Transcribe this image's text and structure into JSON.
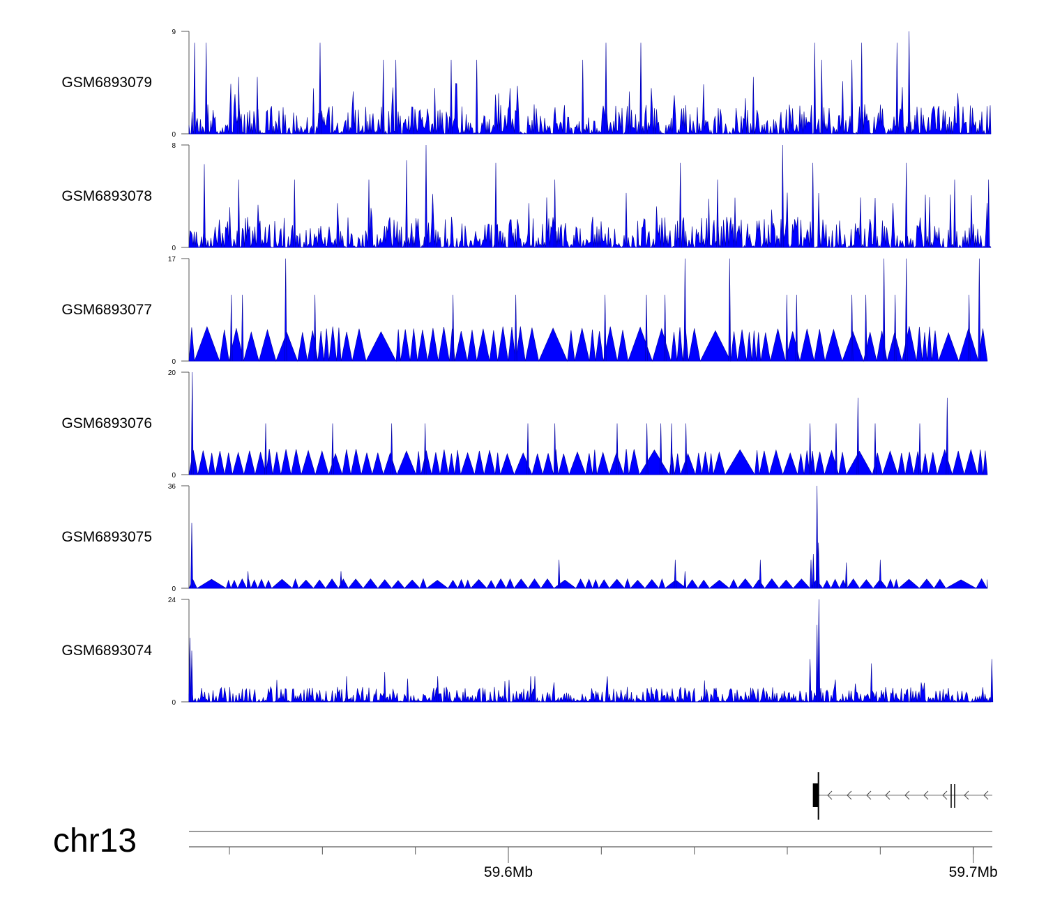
{
  "chart_data": {
    "type": "area",
    "title": "",
    "chromosome": "chr13",
    "xlim_mb": [
      59.5313,
      59.7041
    ],
    "axis": {
      "tick_positions_mb": [
        59.54,
        59.56,
        59.58,
        59.6,
        59.62,
        59.64,
        59.66,
        59.68,
        59.7
      ],
      "labels": [
        {
          "pos_mb": 59.6,
          "text": "59.6Mb"
        },
        {
          "pos_mb": 59.7,
          "text": "59.7Mb"
        }
      ]
    },
    "tracks": [
      {
        "name": "GSM6893079",
        "ylim": [
          0,
          9
        ],
        "ymin_label": "0",
        "ymax_label": "9",
        "style": "dense",
        "noise": 2.6,
        "peaks": [
          [
            59.5325,
            8
          ],
          [
            59.535,
            8
          ],
          [
            59.5595,
            8
          ],
          [
            59.621,
            8
          ],
          [
            59.6285,
            8
          ],
          [
            59.6862,
            9
          ],
          [
            59.6659,
            8
          ],
          [
            59.676,
            8
          ],
          [
            59.6836,
            8
          ],
          [
            59.616,
            6.5
          ],
          [
            59.5877,
            6.5
          ],
          [
            59.5731,
            6.5
          ],
          [
            59.5758,
            6.5
          ],
          [
            59.5932,
            6.5
          ],
          [
            59.6527,
            5
          ],
          [
            59.6674,
            6.5
          ],
          [
            59.6739,
            6.5
          ],
          [
            59.546,
            5
          ],
          [
            59.542,
            5
          ]
        ]
      },
      {
        "name": "GSM6893078",
        "ylim": [
          0,
          8
        ],
        "ymin_label": "0",
        "ymax_label": "8",
        "style": "dense",
        "noise": 2.4,
        "peaks": [
          [
            59.5823,
            8
          ],
          [
            59.659,
            8
          ],
          [
            59.5346,
            6.5
          ],
          [
            59.5781,
            6.8
          ],
          [
            59.5973,
            6.6
          ],
          [
            59.637,
            6.6
          ],
          [
            59.6655,
            6.6
          ],
          [
            59.6856,
            6.6
          ],
          [
            59.7033,
            5.3
          ],
          [
            59.542,
            5.3
          ],
          [
            59.554,
            5.3
          ],
          [
            59.57,
            5.3
          ],
          [
            59.61,
            5.3
          ],
          [
            59.645,
            5.3
          ],
          [
            59.696,
            5.3
          ]
        ]
      },
      {
        "name": "GSM6893077",
        "ylim": [
          0,
          17
        ],
        "ymin_label": "0",
        "ymax_label": "17",
        "style": "sparse",
        "base": 5.5,
        "peaks": [
          [
            59.5521,
            17
          ],
          [
            59.638,
            17
          ],
          [
            59.6476,
            17
          ],
          [
            59.6808,
            17
          ],
          [
            59.6856,
            17
          ],
          [
            59.7013,
            17
          ],
          [
            59.5404,
            11
          ],
          [
            59.5428,
            11
          ],
          [
            59.5584,
            11
          ],
          [
            59.5881,
            11
          ],
          [
            59.6016,
            11
          ],
          [
            59.6208,
            11
          ],
          [
            59.6297,
            11
          ],
          [
            59.6337,
            11
          ],
          [
            59.6599,
            11
          ],
          [
            59.662,
            11
          ],
          [
            59.6739,
            11
          ],
          [
            59.6769,
            11
          ],
          [
            59.6832,
            11
          ],
          [
            59.6991,
            11
          ]
        ]
      },
      {
        "name": "GSM6893076",
        "ylim": [
          0,
          20
        ],
        "ymin_label": "0",
        "ymax_label": "20",
        "style": "sparse",
        "base": 4.8,
        "peaks": [
          [
            59.532,
            20
          ],
          [
            59.6752,
            15
          ],
          [
            59.6944,
            15
          ],
          [
            59.5478,
            10
          ],
          [
            59.5622,
            10
          ],
          [
            59.5749,
            10
          ],
          [
            59.5821,
            10
          ],
          [
            59.61,
            10
          ],
          [
            59.6234,
            10
          ],
          [
            59.6649,
            10
          ],
          [
            59.6705,
            10
          ],
          [
            59.6789,
            10
          ],
          [
            59.6885,
            10
          ],
          [
            59.6351,
            10
          ],
          [
            59.6328,
            10
          ],
          [
            59.6298,
            10
          ],
          [
            59.6382,
            10
          ],
          [
            59.6042,
            10
          ]
        ]
      },
      {
        "name": "GSM6893075",
        "ylim": [
          0,
          36
        ],
        "ymin_label": "0",
        "ymax_label": "36",
        "style": "sparse",
        "base": 3.2,
        "peaks": [
          [
            59.6664,
            36
          ],
          [
            59.6667,
            16
          ],
          [
            59.6656,
            12
          ],
          [
            59.6651,
            10
          ],
          [
            59.5319,
            23
          ],
          [
            59.6109,
            10
          ],
          [
            59.6359,
            10
          ],
          [
            59.6542,
            10
          ],
          [
            59.68,
            10
          ],
          [
            59.6727,
            9
          ],
          [
            59.544,
            6
          ],
          [
            59.564,
            6
          ],
          [
            59.638,
            6
          ]
        ]
      },
      {
        "name": "GSM6893074",
        "ylim": [
          0,
          24
        ],
        "ymin_label": "0",
        "ymax_label": "24",
        "style": "dense",
        "noise": 3.5,
        "peaks": [
          [
            59.6668,
            24
          ],
          [
            59.6664,
            18
          ],
          [
            59.6649,
            10
          ],
          [
            59.5315,
            15
          ],
          [
            59.5319,
            12
          ],
          [
            59.6781,
            9
          ],
          [
            59.704,
            10
          ],
          [
            59.5734,
            7
          ],
          [
            59.5848,
            6
          ],
          [
            59.5652,
            6
          ],
          [
            59.6048,
            6
          ],
          [
            59.6057,
            6
          ],
          [
            59.6422,
            5
          ]
        ]
      }
    ],
    "gene": {
      "strand": "-",
      "start_mb": 59.6667,
      "end_mb": 59.7041
    }
  }
}
